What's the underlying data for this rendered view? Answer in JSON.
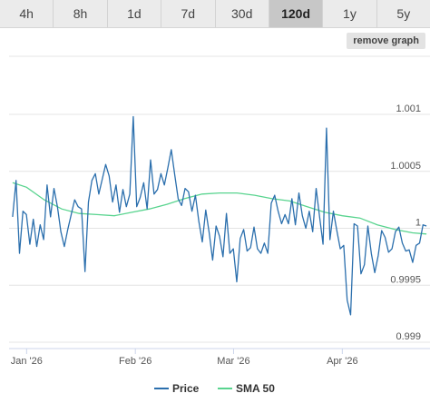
{
  "ranges": [
    {
      "label": "4h",
      "active": false
    },
    {
      "label": "8h",
      "active": false
    },
    {
      "label": "1d",
      "active": false
    },
    {
      "label": "7d",
      "active": false
    },
    {
      "label": "30d",
      "active": false
    },
    {
      "label": "120d",
      "active": true
    },
    {
      "label": "1y",
      "active": false
    },
    {
      "label": "5y",
      "active": false
    }
  ],
  "remove_graph_label": "remove graph",
  "colors": {
    "price": "#2b6fad",
    "sma": "#59d48f",
    "grid": "#e4e4e4",
    "active_tab": "#c7c7c7"
  },
  "chart_data": {
    "type": "line",
    "ylim": [
      0.999,
      1.001
    ],
    "yticks": [
      0.999,
      0.9995,
      1,
      1.0005,
      1.001
    ],
    "ytick_labels": [
      "0.999",
      "0.9995",
      "1",
      "1.0005",
      "1.001"
    ],
    "xticks": [
      {
        "day": 0,
        "label": "Jan '26"
      },
      {
        "day": 31,
        "label": "Feb '26"
      },
      {
        "day": 59,
        "label": "Mar '26"
      },
      {
        "day": 90,
        "label": "Apr '26"
      }
    ],
    "x_range_days": [
      -5,
      115
    ],
    "legend_position": "bottom-center",
    "grid": true,
    "series": [
      {
        "name": "Price",
        "values": [
          1.0001,
          1.00042,
          0.99978,
          1.00015,
          1.00012,
          0.99986,
          1.00008,
          0.99984,
          1.00003,
          0.9999,
          1.00038,
          1.0001,
          1.00035,
          1.00019,
          0.99997,
          0.99984,
          0.99999,
          1.00012,
          1.00025,
          1.00019,
          1.00017,
          0.99962,
          1.00023,
          1.00042,
          1.00048,
          1.0003,
          1.00043,
          1.00056,
          1.00046,
          1.00023,
          1.00038,
          1.00014,
          1.00034,
          1.00019,
          1.0003,
          1.00098,
          1.00019,
          1.00027,
          1.0004,
          1.00017,
          1.0006,
          1.0003,
          1.00034,
          1.00048,
          1.00038,
          1.00053,
          1.00069,
          1.00047,
          1.00026,
          1.0002,
          1.00035,
          1.00032,
          1.00015,
          1.00029,
          1.00006,
          0.99988,
          1.00016,
          0.99996,
          0.99972,
          1.00002,
          0.99993,
          0.99975,
          1.00013,
          0.99978,
          0.99982,
          0.99953,
          0.99991,
          0.99999,
          0.9998,
          0.99983,
          1.00001,
          0.99982,
          0.99978,
          0.99987,
          0.99978,
          1.00022,
          1.00029,
          1.00015,
          1.00004,
          1.00012,
          1.00004,
          1.00026,
          1.00003,
          1.00031,
          1.00011,
          1.0,
          1.00015,
          0.99997,
          1.00035,
          1.0001,
          0.99986,
          1.00088,
          0.9999,
          1.00015,
          0.99998,
          0.99982,
          0.99985,
          0.99937,
          0.99924,
          1.00004,
          1.00002,
          0.9996,
          0.99968,
          1.00002,
          0.99978,
          0.99961,
          0.99976,
          0.99998,
          0.99992,
          0.99979,
          0.99982,
          0.99997,
          1.00001,
          0.99987,
          0.9998,
          0.99981,
          0.9997,
          0.99985,
          0.99987,
          1.00003,
          1.00002
        ],
        "x_start_day": -4
      },
      {
        "name": "SMA 50",
        "points": [
          [
            -4,
            1.0004
          ],
          [
            0,
            1.00036
          ],
          [
            5,
            1.00025
          ],
          [
            10,
            1.00017
          ],
          [
            15,
            1.00013
          ],
          [
            20,
            1.00012
          ],
          [
            25,
            1.00011
          ],
          [
            30,
            1.00014
          ],
          [
            35,
            1.00017
          ],
          [
            40,
            1.00021
          ],
          [
            45,
            1.00026
          ],
          [
            50,
            1.0003
          ],
          [
            55,
            1.00031
          ],
          [
            60,
            1.00031
          ],
          [
            65,
            1.00029
          ],
          [
            70,
            1.00026
          ],
          [
            75,
            1.00024
          ],
          [
            80,
            1.00019
          ],
          [
            85,
            1.00014
          ],
          [
            90,
            1.00011
          ],
          [
            95,
            1.00009
          ],
          [
            100,
            1.00003
          ],
          [
            105,
            0.99999
          ],
          [
            110,
            0.99996
          ],
          [
            114,
            0.99995
          ]
        ]
      }
    ]
  }
}
